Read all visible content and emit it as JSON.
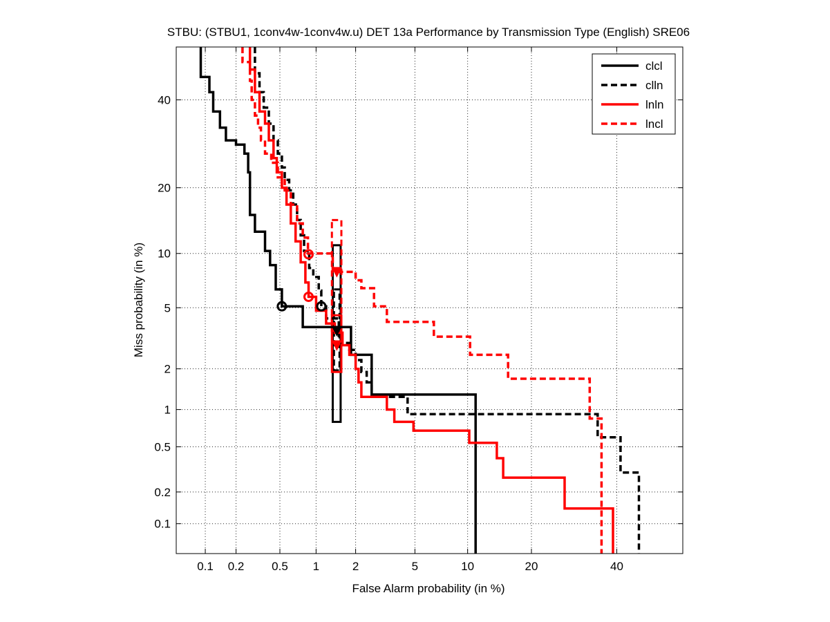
{
  "chart_data": {
    "type": "line",
    "title": "STBU: (STBU1, 1conv4w-1conv4w.u) DET 13a Performance by Transmission Type (English) SRE06",
    "xlabel": "False Alarm probability (in %)",
    "ylabel": "Miss probability (in %)",
    "scale": "normal-deviate (probit) on both axes",
    "xlim": [
      0.05,
      58
    ],
    "ylim": [
      0.05,
      54
    ],
    "x_ticks": [
      0.1,
      0.2,
      0.5,
      1,
      2,
      5,
      10,
      20,
      40
    ],
    "x_tick_labels": [
      "0.1",
      "0.2",
      "0.5",
      "1",
      "2",
      "5",
      "10",
      "20",
      "40"
    ],
    "y_ticks": [
      0.1,
      0.2,
      0.5,
      1,
      2,
      5,
      10,
      20,
      40
    ],
    "y_tick_labels": [
      "0.1",
      "0.2",
      "0.5",
      "1",
      "2",
      "5",
      "10",
      "20",
      "40"
    ],
    "grid": true,
    "legend_position": "top-right",
    "series": [
      {
        "name": "clcl",
        "color": "#000000",
        "dash": "solid",
        "points": [
          [
            0.09,
            54
          ],
          [
            0.09,
            46
          ],
          [
            0.11,
            46
          ],
          [
            0.11,
            42
          ],
          [
            0.12,
            42
          ],
          [
            0.12,
            37
          ],
          [
            0.14,
            37
          ],
          [
            0.14,
            33
          ],
          [
            0.16,
            33
          ],
          [
            0.16,
            30
          ],
          [
            0.2,
            30
          ],
          [
            0.2,
            29
          ],
          [
            0.24,
            29
          ],
          [
            0.24,
            27
          ],
          [
            0.26,
            27
          ],
          [
            0.26,
            23
          ],
          [
            0.27,
            23
          ],
          [
            0.27,
            15.3
          ],
          [
            0.3,
            15.3
          ],
          [
            0.3,
            12.8
          ],
          [
            0.37,
            12.8
          ],
          [
            0.37,
            10.3
          ],
          [
            0.41,
            10.3
          ],
          [
            0.41,
            8.7
          ],
          [
            0.46,
            8.7
          ],
          [
            0.46,
            6.4
          ],
          [
            0.52,
            6.4
          ],
          [
            0.52,
            5.1
          ],
          [
            0.78,
            5.1
          ],
          [
            0.78,
            3.8
          ],
          [
            1.85,
            3.8
          ],
          [
            1.85,
            2.5
          ],
          [
            2.6,
            2.5
          ],
          [
            2.6,
            1.3
          ],
          [
            11.0,
            1.3
          ],
          [
            11.0,
            0.05
          ]
        ]
      },
      {
        "name": "clln",
        "color": "#000000",
        "dash": "dashed",
        "points": [
          [
            0.3,
            54
          ],
          [
            0.3,
            47
          ],
          [
            0.33,
            47
          ],
          [
            0.33,
            42
          ],
          [
            0.36,
            42
          ],
          [
            0.36,
            38
          ],
          [
            0.4,
            38
          ],
          [
            0.4,
            34
          ],
          [
            0.44,
            34
          ],
          [
            0.44,
            30
          ],
          [
            0.48,
            30
          ],
          [
            0.48,
            27
          ],
          [
            0.52,
            27
          ],
          [
            0.52,
            24
          ],
          [
            0.55,
            24
          ],
          [
            0.55,
            21.5
          ],
          [
            0.6,
            21.5
          ],
          [
            0.6,
            19.5
          ],
          [
            0.65,
            19.5
          ],
          [
            0.65,
            17
          ],
          [
            0.7,
            17
          ],
          [
            0.7,
            14.5
          ],
          [
            0.75,
            14.5
          ],
          [
            0.75,
            12.3
          ],
          [
            0.8,
            12.3
          ],
          [
            0.8,
            10.3
          ],
          [
            0.88,
            10.3
          ],
          [
            0.88,
            8.4
          ],
          [
            0.95,
            8.4
          ],
          [
            0.95,
            7.5
          ],
          [
            1.05,
            7.5
          ],
          [
            1.05,
            6.3
          ],
          [
            1.1,
            6.3
          ],
          [
            1.1,
            5.1
          ],
          [
            1.2,
            5.1
          ],
          [
            1.2,
            4.3
          ],
          [
            1.5,
            4.3
          ],
          [
            1.5,
            3.0
          ],
          [
            1.8,
            3.0
          ],
          [
            1.8,
            2.7
          ],
          [
            2.0,
            2.7
          ],
          [
            2.0,
            2.3
          ],
          [
            2.2,
            2.3
          ],
          [
            2.2,
            1.9
          ],
          [
            2.4,
            1.9
          ],
          [
            2.4,
            1.6
          ],
          [
            2.6,
            1.6
          ],
          [
            2.6,
            1.25
          ],
          [
            4.5,
            1.25
          ],
          [
            4.5,
            0.92
          ],
          [
            35,
            0.92
          ],
          [
            35,
            0.6
          ],
          [
            41,
            0.6
          ],
          [
            41,
            0.3
          ],
          [
            46,
            0.3
          ],
          [
            46,
            0.05
          ]
        ]
      },
      {
        "name": "lnln",
        "color": "#ff0000",
        "dash": "solid",
        "points": [
          [
            0.27,
            54
          ],
          [
            0.27,
            48
          ],
          [
            0.3,
            48
          ],
          [
            0.3,
            42
          ],
          [
            0.33,
            42
          ],
          [
            0.33,
            37
          ],
          [
            0.37,
            37
          ],
          [
            0.37,
            34
          ],
          [
            0.4,
            34
          ],
          [
            0.4,
            30
          ],
          [
            0.44,
            30
          ],
          [
            0.44,
            26
          ],
          [
            0.47,
            26
          ],
          [
            0.47,
            23
          ],
          [
            0.52,
            23
          ],
          [
            0.52,
            20
          ],
          [
            0.57,
            20
          ],
          [
            0.57,
            17
          ],
          [
            0.62,
            17
          ],
          [
            0.62,
            14
          ],
          [
            0.68,
            14
          ],
          [
            0.68,
            11.5
          ],
          [
            0.75,
            11.5
          ],
          [
            0.75,
            9
          ],
          [
            0.82,
            9
          ],
          [
            0.82,
            7
          ],
          [
            0.87,
            7
          ],
          [
            0.87,
            5.8
          ],
          [
            1.0,
            5.8
          ],
          [
            1.0,
            4.8
          ],
          [
            1.2,
            4.8
          ],
          [
            1.2,
            4.0
          ],
          [
            1.4,
            4.0
          ],
          [
            1.4,
            3.5
          ],
          [
            1.6,
            3.5
          ],
          [
            1.6,
            2.9
          ],
          [
            1.8,
            2.9
          ],
          [
            1.8,
            2.5
          ],
          [
            2.0,
            2.5
          ],
          [
            2.0,
            2.0
          ],
          [
            2.1,
            2.0
          ],
          [
            2.1,
            1.6
          ],
          [
            2.2,
            1.6
          ],
          [
            2.2,
            1.25
          ],
          [
            3.3,
            1.25
          ],
          [
            3.3,
            1.0
          ],
          [
            3.7,
            1.0
          ],
          [
            3.7,
            0.8
          ],
          [
            4.9,
            0.8
          ],
          [
            4.9,
            0.68
          ],
          [
            10.2,
            0.68
          ],
          [
            10.2,
            0.54
          ],
          [
            14,
            0.54
          ],
          [
            14,
            0.4
          ],
          [
            15,
            0.4
          ],
          [
            15,
            0.27
          ],
          [
            27,
            0.27
          ],
          [
            27,
            0.14
          ],
          [
            39,
            0.14
          ],
          [
            39,
            0.05
          ]
        ]
      },
      {
        "name": "lncl",
        "color": "#ff0000",
        "dash": "dashed",
        "points": [
          [
            0.23,
            54
          ],
          [
            0.23,
            50
          ],
          [
            0.27,
            50
          ],
          [
            0.27,
            45
          ],
          [
            0.28,
            45
          ],
          [
            0.28,
            40
          ],
          [
            0.3,
            40
          ],
          [
            0.3,
            36
          ],
          [
            0.32,
            36
          ],
          [
            0.32,
            33
          ],
          [
            0.34,
            33
          ],
          [
            0.34,
            30
          ],
          [
            0.37,
            30
          ],
          [
            0.37,
            27
          ],
          [
            0.42,
            27
          ],
          [
            0.42,
            25
          ],
          [
            0.48,
            25
          ],
          [
            0.48,
            22
          ],
          [
            0.55,
            22
          ],
          [
            0.55,
            19.5
          ],
          [
            0.62,
            19.5
          ],
          [
            0.62,
            17
          ],
          [
            0.7,
            17
          ],
          [
            0.7,
            14
          ],
          [
            0.78,
            14
          ],
          [
            0.78,
            12
          ],
          [
            0.86,
            12
          ],
          [
            0.86,
            10
          ],
          [
            1.35,
            10
          ],
          [
            1.35,
            8.0
          ],
          [
            2.0,
            8.0
          ],
          [
            2.0,
            7.2
          ],
          [
            2.2,
            7.2
          ],
          [
            2.2,
            6.5
          ],
          [
            2.7,
            6.5
          ],
          [
            2.7,
            5.1
          ],
          [
            3.3,
            5.1
          ],
          [
            3.3,
            4.1
          ],
          [
            6.5,
            4.1
          ],
          [
            6.5,
            3.3
          ],
          [
            10.3,
            3.3
          ],
          [
            10.3,
            2.5
          ],
          [
            15.8,
            2.5
          ],
          [
            15.8,
            1.7
          ],
          [
            33,
            1.7
          ],
          [
            33,
            0.85
          ],
          [
            36,
            0.85
          ],
          [
            36,
            0.05
          ]
        ]
      }
    ],
    "markers": [
      {
        "series": "clcl",
        "shape": "circle",
        "x": 0.52,
        "y": 5.1
      },
      {
        "series": "clcl",
        "shape": "circle",
        "x": 1.1,
        "y": 5.1
      },
      {
        "series": "clcl",
        "shape": "triangle",
        "x": 1.45,
        "y": 3.6
      },
      {
        "series": "lnln",
        "shape": "circle",
        "x": 0.87,
        "y": 5.8
      },
      {
        "series": "lnln",
        "shape": "triangle",
        "x": 1.45,
        "y": 2.9
      },
      {
        "series": "lncl",
        "shape": "circle",
        "x": 0.87,
        "y": 9.9
      },
      {
        "series": "lncl",
        "shape": "triangle",
        "x": 1.45,
        "y": 8.0
      }
    ],
    "confidence_boxes": [
      {
        "series": "clcl",
        "dash": "solid",
        "color": "#000000",
        "x": [
          1.35,
          1.55
        ],
        "y": [
          0.8,
          11.0
        ]
      },
      {
        "series": "clln",
        "dash": "dashed",
        "color": "#000000",
        "x": [
          1.38,
          1.52
        ],
        "y": [
          1.95,
          6.4
        ]
      },
      {
        "series": "lnln",
        "dash": "solid",
        "color": "#ff0000",
        "x": [
          1.33,
          1.57
        ],
        "y": [
          1.9,
          4.5
        ]
      },
      {
        "series": "lncl",
        "dash": "dashed",
        "color": "#ff0000",
        "x": [
          1.33,
          1.57
        ],
        "y": [
          3.6,
          14.5
        ]
      }
    ]
  }
}
